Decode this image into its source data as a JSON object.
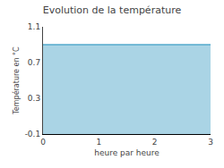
{
  "chart_data": {
    "type": "area",
    "title": "Evolution de la température",
    "xlabel": "heure par heure",
    "ylabel": "Température en °C",
    "x": [
      0,
      3
    ],
    "series": [
      {
        "color": "#55aacc",
        "values": [
          0.9,
          0.9
        ]
      }
    ],
    "xlim": [
      0,
      3
    ],
    "xticks": [
      0,
      1,
      2,
      3
    ],
    "ylim": [
      -0.1,
      1.1
    ],
    "yticks": [
      -0.1,
      0.3,
      0.7,
      1.1
    ],
    "grid": false
  }
}
